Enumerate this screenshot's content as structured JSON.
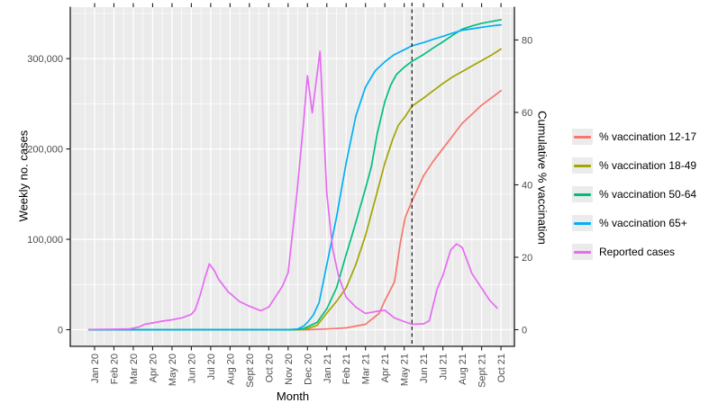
{
  "figure": {
    "background": "#FFFFFF",
    "panel_background": "#EBEBEB",
    "gridline_color": "#FFFFFF",
    "axis_text_color": "#4D4D4D",
    "axis_line_color": "#1a1a1a"
  },
  "chart_data": {
    "type": "line",
    "title": "",
    "xlabel": "Month",
    "ylabel_left": "Weekly no. cases",
    "ylabel_right": "Cumulative % vaccination",
    "x_tick_labels": [
      "Jan 20",
      "Feb 20",
      "Mar 20",
      "Apr 20",
      "May 20",
      "Jun 20",
      "Jul 20",
      "Aug 20",
      "Sept 20",
      "Oct 20",
      "Nov 20",
      "Dec 20",
      "Jan 21",
      "Feb 21",
      "Mar 21",
      "Apr 21",
      "May 21",
      "Jun 21",
      "Jul 21",
      "Aug 21",
      "Sept 21",
      "Oct 21"
    ],
    "left_axis": {
      "ticks": [
        0,
        100000,
        200000,
        300000
      ],
      "tick_labels": [
        "0",
        "100,000",
        "200,000",
        "300,000"
      ],
      "range": [
        0,
        340000
      ]
    },
    "right_axis": {
      "ticks": [
        0,
        20,
        40,
        60,
        80
      ],
      "tick_labels": [
        "0",
        "20",
        "40",
        "60",
        "80"
      ],
      "range": [
        0,
        86
      ]
    },
    "grid": {
      "major": true,
      "minor": true
    },
    "legend_position": "right",
    "vline": {
      "style": "dashed",
      "color": "#000000",
      "month_index": 16.4
    },
    "series": [
      {
        "name": "% vaccination 12-17",
        "color": "#F8766D",
        "axis": "right",
        "points": [
          [
            -0.3,
            0
          ],
          [
            5,
            0
          ],
          [
            11,
            0
          ],
          [
            12,
            0.2
          ],
          [
            13,
            0.5
          ],
          [
            14,
            1.5
          ],
          [
            14.7,
            4.5
          ],
          [
            15,
            8
          ],
          [
            15.5,
            13.2
          ],
          [
            15.8,
            24
          ],
          [
            16.05,
            31
          ],
          [
            16.4,
            35.5
          ],
          [
            17,
            42.5
          ],
          [
            17.5,
            46.5
          ],
          [
            18,
            50
          ],
          [
            18.5,
            53.5
          ],
          [
            19,
            57
          ],
          [
            19.5,
            59.5
          ],
          [
            20,
            62
          ],
          [
            20.5,
            64
          ],
          [
            21,
            66
          ]
        ]
      },
      {
        "name": "% vaccination 18-49",
        "color": "#A3A500",
        "axis": "right",
        "points": [
          [
            -0.3,
            0
          ],
          [
            5,
            0
          ],
          [
            10.5,
            0
          ],
          [
            11,
            0.3
          ],
          [
            11.5,
            1.2
          ],
          [
            12,
            4.6
          ],
          [
            12.5,
            7.8
          ],
          [
            13,
            11.5
          ],
          [
            13.5,
            18
          ],
          [
            14,
            26
          ],
          [
            14.5,
            36
          ],
          [
            15,
            46
          ],
          [
            15.4,
            52.5
          ],
          [
            15.7,
            56.5
          ],
          [
            16,
            58.5
          ],
          [
            16.4,
            61.7
          ],
          [
            17,
            64
          ],
          [
            17.5,
            66
          ],
          [
            18,
            68
          ],
          [
            18.5,
            69.8
          ],
          [
            19,
            71.3
          ],
          [
            19.5,
            72.8
          ],
          [
            20,
            74.3
          ],
          [
            20.5,
            75.8
          ],
          [
            21,
            77.5
          ]
        ]
      },
      {
        "name": "% vaccination 50-64",
        "color": "#00BF7D",
        "axis": "right",
        "points": [
          [
            -0.3,
            0
          ],
          [
            5,
            0
          ],
          [
            10.3,
            0
          ],
          [
            10.8,
            0.3
          ],
          [
            11,
            0.8
          ],
          [
            11.5,
            2
          ],
          [
            12,
            5.8
          ],
          [
            12.5,
            11.5
          ],
          [
            13,
            20.7
          ],
          [
            13.3,
            26
          ],
          [
            13.6,
            31.5
          ],
          [
            14,
            39
          ],
          [
            14.3,
            45
          ],
          [
            14.6,
            54
          ],
          [
            15,
            63
          ],
          [
            15.3,
            67.5
          ],
          [
            15.6,
            70.5
          ],
          [
            16,
            72.5
          ],
          [
            16.4,
            74.1
          ],
          [
            17,
            76
          ],
          [
            17.5,
            77.8
          ],
          [
            18,
            79.5
          ],
          [
            18.5,
            81.3
          ],
          [
            19,
            83
          ],
          [
            19.5,
            83.9
          ],
          [
            20,
            84.6
          ],
          [
            20.5,
            85.1
          ],
          [
            21,
            85.6
          ]
        ]
      },
      {
        "name": "% vaccination 65+",
        "color": "#00B0F6",
        "axis": "right",
        "points": [
          [
            -0.3,
            0
          ],
          [
            5,
            0
          ],
          [
            10,
            0
          ],
          [
            10.5,
            0.2
          ],
          [
            10.8,
            1
          ],
          [
            11,
            2
          ],
          [
            11.3,
            4
          ],
          [
            11.6,
            7.5
          ],
          [
            12,
            18
          ],
          [
            12.5,
            31
          ],
          [
            13,
            46
          ],
          [
            13.5,
            59
          ],
          [
            14,
            67
          ],
          [
            14.5,
            71.5
          ],
          [
            15,
            74
          ],
          [
            15.5,
            76
          ],
          [
            16,
            77.3
          ],
          [
            16.4,
            78.4
          ],
          [
            17,
            79.3
          ],
          [
            17.5,
            80.2
          ],
          [
            18,
            81
          ],
          [
            18.5,
            81.9
          ],
          [
            19,
            82.7
          ],
          [
            19.5,
            83.1
          ],
          [
            20,
            83.5
          ],
          [
            20.5,
            83.9
          ],
          [
            21,
            84.2
          ]
        ]
      },
      {
        "name": "Reported cases",
        "color": "#E76BF3",
        "axis": "left",
        "points": [
          [
            -0.3,
            200
          ],
          [
            0,
            300
          ],
          [
            1,
            500
          ],
          [
            1.8,
            900
          ],
          [
            2.3,
            3000
          ],
          [
            2.6,
            6000
          ],
          [
            3,
            7500
          ],
          [
            3.5,
            9500
          ],
          [
            4,
            11000
          ],
          [
            4.5,
            13000
          ],
          [
            5,
            17000
          ],
          [
            5.2,
            22000
          ],
          [
            5.45,
            38000
          ],
          [
            5.7,
            57000
          ],
          [
            5.93,
            73000
          ],
          [
            6.2,
            65000
          ],
          [
            6.4,
            56000
          ],
          [
            6.9,
            42000
          ],
          [
            7.5,
            31000
          ],
          [
            8,
            26000
          ],
          [
            8.6,
            21000
          ],
          [
            9,
            25000
          ],
          [
            9.4,
            38000
          ],
          [
            9.7,
            48000
          ],
          [
            10,
            63000
          ],
          [
            10.45,
            150000
          ],
          [
            10.8,
            230000
          ],
          [
            11,
            281000
          ],
          [
            11.25,
            240000
          ],
          [
            11.65,
            308000
          ],
          [
            12,
            150000
          ],
          [
            12.3,
            90000
          ],
          [
            12.6,
            60000
          ],
          [
            13,
            36000
          ],
          [
            13.5,
            25000
          ],
          [
            14,
            18000
          ],
          [
            14.5,
            20000
          ],
          [
            15,
            21500
          ],
          [
            15.5,
            13000
          ],
          [
            16,
            9000
          ],
          [
            16.4,
            6000
          ],
          [
            17,
            6500
          ],
          [
            17.3,
            10000
          ],
          [
            17.7,
            45000
          ],
          [
            18,
            60000
          ],
          [
            18.4,
            88000
          ],
          [
            18.7,
            95000
          ],
          [
            19,
            91000
          ],
          [
            19.5,
            62000
          ],
          [
            20,
            46000
          ],
          [
            20.4,
            33000
          ],
          [
            20.8,
            24000
          ]
        ]
      }
    ]
  }
}
